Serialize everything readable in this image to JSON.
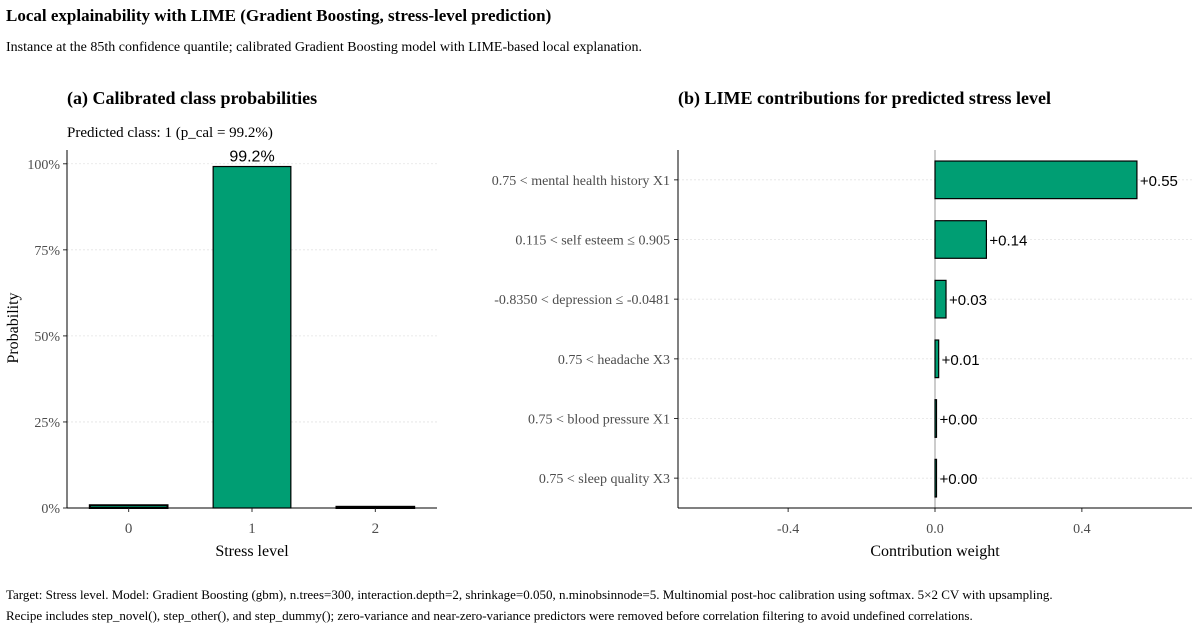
{
  "title": "Local explainability with LIME (Gradient Boosting, stress-level prediction)",
  "subtitle": "Instance at the 85th confidence quantile; calibrated Gradient Boosting model with LIME-based local explanation.",
  "footnote": {
    "line1": "Target: Stress level. Model: Gradient Boosting (gbm), n.trees=300, interaction.depth=2, shrinkage=0.050, n.minobsinnode=5. Multinomial post-hoc calibration using softmax. 5×2 CV with upsampling.",
    "line2": "Recipe includes step_novel(), step_other(), and step_dummy(); zero-variance and near-zero-variance predictors were removed before correlation filtering to avoid undefined correlations."
  },
  "colors": {
    "bar_fill": "#009E73",
    "bar_stroke": "#000000",
    "grid": "#e3e3e3",
    "axis_text": "#4d4d4d"
  },
  "chart_data": [
    {
      "type": "bar",
      "title": "(a) Calibrated class probabilities",
      "subtitle": "Predicted class: 1 (p_cal = 99.2%)",
      "xlabel": "Stress level",
      "ylabel": "Probability",
      "categories": [
        "0",
        "1",
        "2"
      ],
      "values": [
        0.008,
        0.992,
        0.002
      ],
      "highlight": "1",
      "data_labels": [
        "",
        "99.2%",
        ""
      ],
      "ylim": [
        0,
        1.04
      ],
      "yticks": [
        0,
        0.25,
        0.5,
        0.75,
        1.0
      ],
      "ytick_labels": [
        "0%",
        "25%",
        "50%",
        "75%",
        "100%"
      ],
      "grid": "horizontal major"
    },
    {
      "type": "bar",
      "orientation": "horizontal",
      "title": "(b) LIME contributions for predicted stress level",
      "xlabel": "Contribution weight",
      "ylabel": "",
      "categories": [
        "0.75 <  mental health history X1",
        "0.115 <  self esteem ≤  0.905",
        "-0.8350 <  depression ≤  -0.0481",
        "0.75 <  headache X3",
        "0.75 <  blood pressure X1",
        "0.75 <  sleep quality X3"
      ],
      "values": [
        0.55,
        0.14,
        0.03,
        0.01,
        0.002,
        0.001
      ],
      "data_labels": [
        "+0.55",
        "+0.14",
        "+0.03",
        "+0.01",
        "+0.00",
        "+0.00"
      ],
      "xlim": [
        -0.7,
        0.7
      ],
      "xticks": [
        -0.4,
        0.0,
        0.4
      ],
      "xtick_labels": [
        "-0.4",
        "0.0",
        "0.4"
      ],
      "grid": "horizontal major",
      "zero_line": true
    }
  ]
}
